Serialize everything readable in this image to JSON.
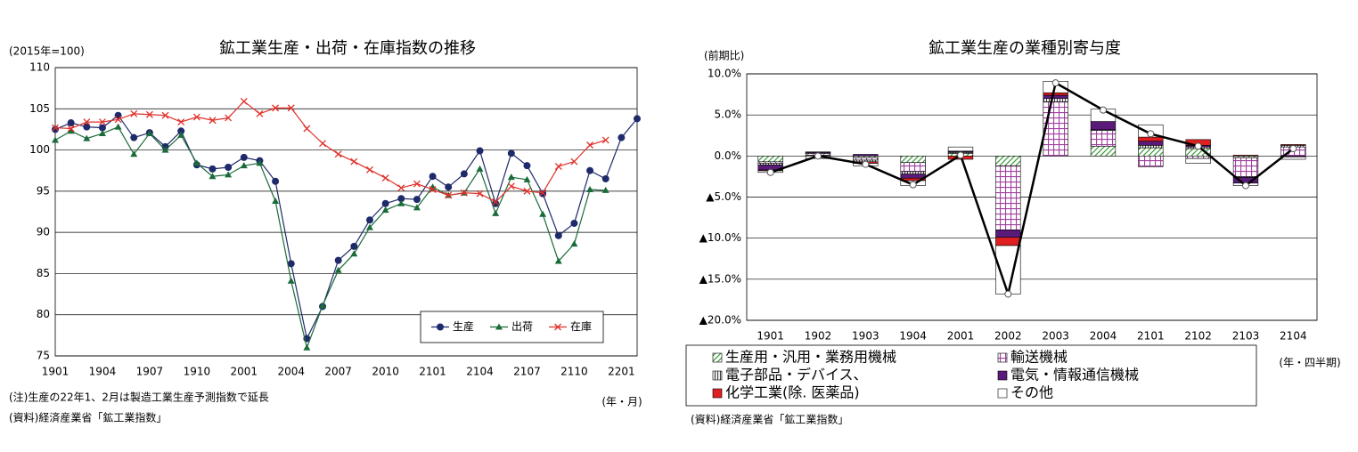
{
  "chart_data": [
    {
      "type": "line",
      "title": "鉱工業生産・出荷・在庫指数の推移",
      "y_label": "(2015年=100)",
      "x_label": "(年・月)",
      "notes": [
        "(注)生産の22年1、2月は製造工業生産予測指数で延長",
        "(資料)経済産業省「鉱工業指数」"
      ],
      "categories": [
        "1901",
        null,
        null,
        "1904",
        null,
        null,
        "1907",
        null,
        null,
        "1910",
        null,
        null,
        "2001",
        null,
        null,
        "2004",
        null,
        null,
        "2007",
        null,
        null,
        "2010",
        null,
        null,
        "2101",
        null,
        null,
        "2104",
        null,
        null,
        "2107",
        null,
        null,
        "2110",
        null,
        null,
        "2201",
        null
      ],
      "series": [
        {
          "name": "生産",
          "color": "#1f2a6b",
          "marker": "circle",
          "values": [
            102.5,
            103.3,
            102.8,
            102.7,
            104.2,
            101.5,
            102.1,
            100.4,
            102.3,
            98.2,
            97.7,
            97.9,
            99.1,
            98.7,
            96.2,
            86.2,
            77.1,
            81.0,
            86.6,
            88.3,
            91.5,
            93.5,
            94.1,
            94.0,
            96.8,
            95.5,
            97.1,
            99.9,
            93.5,
            99.6,
            98.1,
            94.7,
            89.6,
            91.1,
            97.5,
            96.5,
            101.5,
            103.8
          ]
        },
        {
          "name": "出荷",
          "color": "#1a6b3a",
          "marker": "triangle",
          "values": [
            101.2,
            102.3,
            101.4,
            102.0,
            102.8,
            99.5,
            102.0,
            100.0,
            101.8,
            98.4,
            96.8,
            97.0,
            98.1,
            98.4,
            93.8,
            84.1,
            76.0,
            81.1,
            85.4,
            87.4,
            90.6,
            92.7,
            93.5,
            93.0,
            95.5,
            94.5,
            94.8,
            97.7,
            92.3,
            96.7,
            96.4,
            92.2,
            86.5,
            88.6,
            95.2,
            95.1,
            null,
            null
          ]
        },
        {
          "name": "在庫",
          "color": "#e0302a",
          "marker": "x",
          "values": [
            102.7,
            102.6,
            103.4,
            103.4,
            103.7,
            104.4,
            104.3,
            104.2,
            103.4,
            104.0,
            103.6,
            103.9,
            105.9,
            104.4,
            105.1,
            105.1,
            102.6,
            100.8,
            99.5,
            98.6,
            97.6,
            96.6,
            95.4,
            95.9,
            95.2,
            94.5,
            94.8,
            94.7,
            93.7,
            95.6,
            95.0,
            94.8,
            98.0,
            98.6,
            100.6,
            101.2,
            null,
            null
          ]
        }
      ],
      "ylim": [
        75,
        110
      ],
      "yticks": [
        75,
        80,
        85,
        90,
        95,
        100,
        105,
        110
      ],
      "grid": true,
      "legend": "lower right"
    },
    {
      "type": "stacked_bar",
      "title": "鉱工業生産の業種別寄与度",
      "y_label": "(前期比)",
      "x_label": "(年・四半期)",
      "notes": [
        "(資料)経済産業省「鉱工業指数」"
      ],
      "categories": [
        "1901",
        "1902",
        "1903",
        "1904",
        "2001",
        "2002",
        "2003",
        "2004",
        "2101",
        "2102",
        "2103",
        "2104"
      ],
      "series": [
        {
          "name": "生産用・汎用・業務用機械",
          "color": "#3a9a3a",
          "pattern": "diagonal",
          "values": [
            -0.7,
            0.1,
            -0.2,
            -0.8,
            0.3,
            -1.2,
            0,
            1.2,
            1.0,
            0.9,
            -0.2,
            0
          ]
        },
        {
          "name": "輸送機械",
          "color": "#a040a0",
          "pattern": "grid",
          "values": [
            -0.2,
            0.2,
            -0.3,
            -1.1,
            0.1,
            -7.8,
            6.6,
            1.9,
            -1.3,
            -0.3,
            -2.3,
            1.1
          ]
        },
        {
          "name": "電子部品・デバイス、",
          "color": "#404040",
          "pattern": "vertical",
          "values": [
            -0.2,
            0.1,
            -0.2,
            -0.3,
            0.1,
            0,
            0.4,
            0.1,
            0.3,
            0.2,
            -0.1,
            0.2
          ]
        },
        {
          "name": "電気・情報通信機械",
          "color": "#5a1a7a",
          "pattern": "solid",
          "values": [
            -0.6,
            0.1,
            0.2,
            -0.5,
            0.1,
            -0.9,
            0.4,
            1.0,
            0.5,
            0.2,
            -0.7,
            -0.1
          ]
        },
        {
          "name": "化学工業(除. 医薬品)",
          "color": "#e02020",
          "pattern": "solid",
          "values": [
            -0.1,
            0,
            -0.2,
            -0.3,
            -0.4,
            -1.0,
            0.3,
            0,
            0.5,
            0.7,
            0.1,
            0.1
          ]
        },
        {
          "name": "その他",
          "color": "#ffffff",
          "pattern": "solid",
          "values": [
            -0.2,
            -0.3,
            -0.3,
            -0.6,
            0.5,
            -5.9,
            1.4,
            1.5,
            1.5,
            -0.6,
            -0.3,
            -0.3
          ]
        }
      ],
      "line": {
        "color": "#000000",
        "values": [
          -2.0,
          0.0,
          -1.0,
          -3.5,
          0.1,
          -16.8,
          8.9,
          5.6,
          2.7,
          1.2,
          -3.6,
          0.9
        ]
      },
      "ylim": [
        -20,
        10
      ],
      "yticks": [
        {
          "value": -20,
          "label": "▲20.0%"
        },
        {
          "value": -15,
          "label": "▲15.0%"
        },
        {
          "value": -10,
          "label": "▲10.0%"
        },
        {
          "value": -5,
          "label": "▲5.0%"
        },
        {
          "value": 0,
          "label": "0.0%"
        },
        {
          "value": 5,
          "label": "5.0%"
        },
        {
          "value": 10,
          "label": "10.0%"
        }
      ],
      "grid": true,
      "legend": "bottom"
    }
  ]
}
